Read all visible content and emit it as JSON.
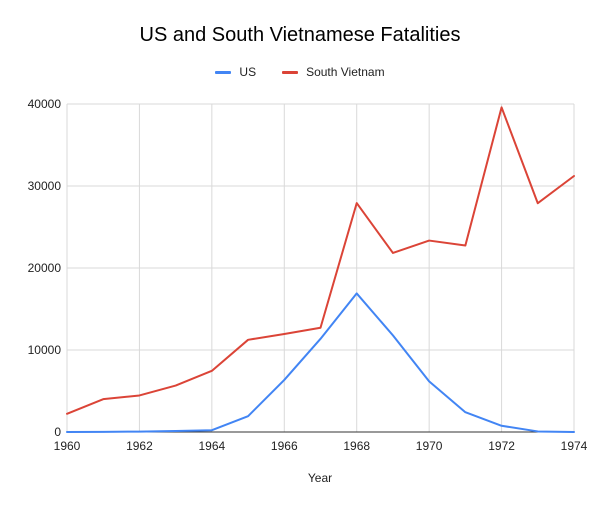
{
  "chart_data": {
    "type": "line",
    "title": "US and South Vietnamese Fatalities",
    "xlabel": "Year",
    "ylabel": "",
    "x": [
      1960,
      1961,
      1962,
      1963,
      1964,
      1965,
      1966,
      1967,
      1968,
      1969,
      1970,
      1971,
      1972,
      1973,
      1974
    ],
    "xlim": [
      1960,
      1974
    ],
    "ylim": [
      0,
      40000
    ],
    "x_ticks": [
      "1960",
      "1962",
      "1964",
      "1966",
      "1968",
      "1970",
      "1972",
      "1974"
    ],
    "y_ticks": [
      "0",
      "10000",
      "20000",
      "30000",
      "40000"
    ],
    "grid": true,
    "legend_position": "top",
    "series": [
      {
        "name": "US",
        "color": "#4285f4",
        "values": [
          5,
          16,
          53,
          122,
          216,
          1928,
          6350,
          11363,
          16899,
          11780,
          6173,
          2414,
          759,
          68,
          1
        ]
      },
      {
        "name": "South Vietnam",
        "color": "#db4437",
        "values": [
          2223,
          4004,
          4457,
          5665,
          7457,
          11242,
          11953,
          12716,
          27915,
          21833,
          23346,
          22738,
          39587,
          27901,
          31219
        ]
      }
    ]
  }
}
